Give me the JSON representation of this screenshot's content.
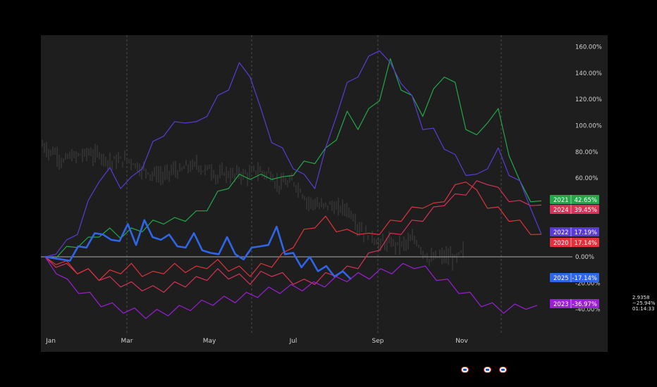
{
  "chart_data": {
    "type": "line",
    "x_ticks": [
      "Jan",
      "Mar",
      "May",
      "Jul",
      "Sep",
      "Nov"
    ],
    "y_ticks": [
      "160.00%",
      "140.00%",
      "120.00%",
      "100.00%",
      "80.00%",
      "60.00%",
      "0.00%",
      "-20.00%",
      "-40.00%"
    ],
    "ylim": [
      -60,
      170
    ],
    "grid": "vertical dashed",
    "background_series": {
      "type": "candlestick",
      "color": "#3a3a3a"
    },
    "series": [
      {
        "name": "2021",
        "label": "42.65%",
        "color": "#22a84a",
        "values": [
          0,
          2,
          5,
          10,
          12,
          18,
          19,
          17,
          19,
          22,
          25,
          28,
          27,
          30,
          32,
          38,
          47,
          55,
          60,
          62,
          60,
          62,
          58,
          65,
          70,
          74,
          80,
          92,
          108,
          100,
          110,
          122,
          148,
          130,
          120,
          110,
          125,
          140,
          130,
          100,
          90,
          105,
          110,
          80,
          55,
          45,
          42.65
        ]
      },
      {
        "name": "2024",
        "label": "39.45%",
        "color": "#d6325a",
        "values": [
          0,
          -5,
          -8,
          -10,
          -12,
          -15,
          -18,
          -20,
          -22,
          -23,
          -25,
          -24,
          -22,
          -20,
          -18,
          -15,
          -12,
          -14,
          -16,
          -18,
          -14,
          -12,
          -15,
          -18,
          -20,
          -18,
          -15,
          -12,
          -10,
          -6,
          0,
          8,
          15,
          20,
          25,
          30,
          35,
          42,
          45,
          50,
          55,
          58,
          50,
          45,
          40,
          42,
          39.45
        ]
      },
      {
        "name": "2022",
        "label": "17.19%",
        "color": "#5b3bd6",
        "values": [
          0,
          5,
          10,
          20,
          40,
          60,
          65,
          55,
          58,
          70,
          85,
          95,
          100,
          105,
          100,
          110,
          120,
          130,
          145,
          140,
          110,
          90,
          80,
          70,
          60,
          55,
          80,
          110,
          130,
          140,
          150,
          160,
          145,
          135,
          120,
          100,
          95,
          85,
          75,
          65,
          60,
          70,
          80,
          65,
          55,
          40,
          17.19
        ]
      },
      {
        "name": "2020",
        "label": "17.14%",
        "color": "#e0333c",
        "values": [
          0,
          -3,
          -6,
          -10,
          -12,
          -15,
          -13,
          -10,
          -8,
          -12,
          -14,
          -10,
          -8,
          -9,
          -10,
          -6,
          -5,
          -8,
          -10,
          -12,
          -8,
          -5,
          0,
          10,
          18,
          25,
          28,
          22,
          18,
          20,
          15,
          20,
          25,
          30,
          35,
          40,
          38,
          45,
          52,
          60,
          48,
          40,
          35,
          30,
          25,
          20,
          17.14
        ]
      },
      {
        "name": "2025",
        "label": "-17.14%",
        "color": "#2f66e8",
        "bold": true,
        "values": [
          0,
          2,
          -5,
          0,
          5,
          10,
          15,
          20,
          10,
          15,
          22,
          12,
          25,
          18,
          10,
          20,
          5,
          10,
          15,
          8,
          0,
          5,
          12,
          5,
          -5,
          10,
          5,
          12,
          20,
          5,
          0,
          -5,
          -3,
          -8,
          -10,
          -12,
          -14,
          -17.14
        ]
      },
      {
        "name": "2023",
        "label": "-36.97%",
        "color": "#9b1fd6",
        "values": [
          0,
          -10,
          -20,
          -25,
          -30,
          -35,
          -38,
          -40,
          -42,
          -44,
          -43,
          -42,
          -40,
          -38,
          -36,
          -34,
          -33,
          -32,
          -30,
          -28,
          -26,
          -25,
          -24,
          -23,
          -22,
          -20,
          -18,
          -16,
          -15,
          -14,
          -12,
          -10,
          -8,
          -6,
          -10,
          -15,
          -20,
          -25,
          -30,
          -35,
          -38,
          -40,
          -39,
          -37,
          -36.97
        ]
      }
    ]
  },
  "side_readout": {
    "price": "2.9358",
    "change": "−25.94%",
    "time": "01:14:33"
  },
  "tray_icons": [
    "flag-icon",
    "flag-icon",
    "flag-icon"
  ]
}
